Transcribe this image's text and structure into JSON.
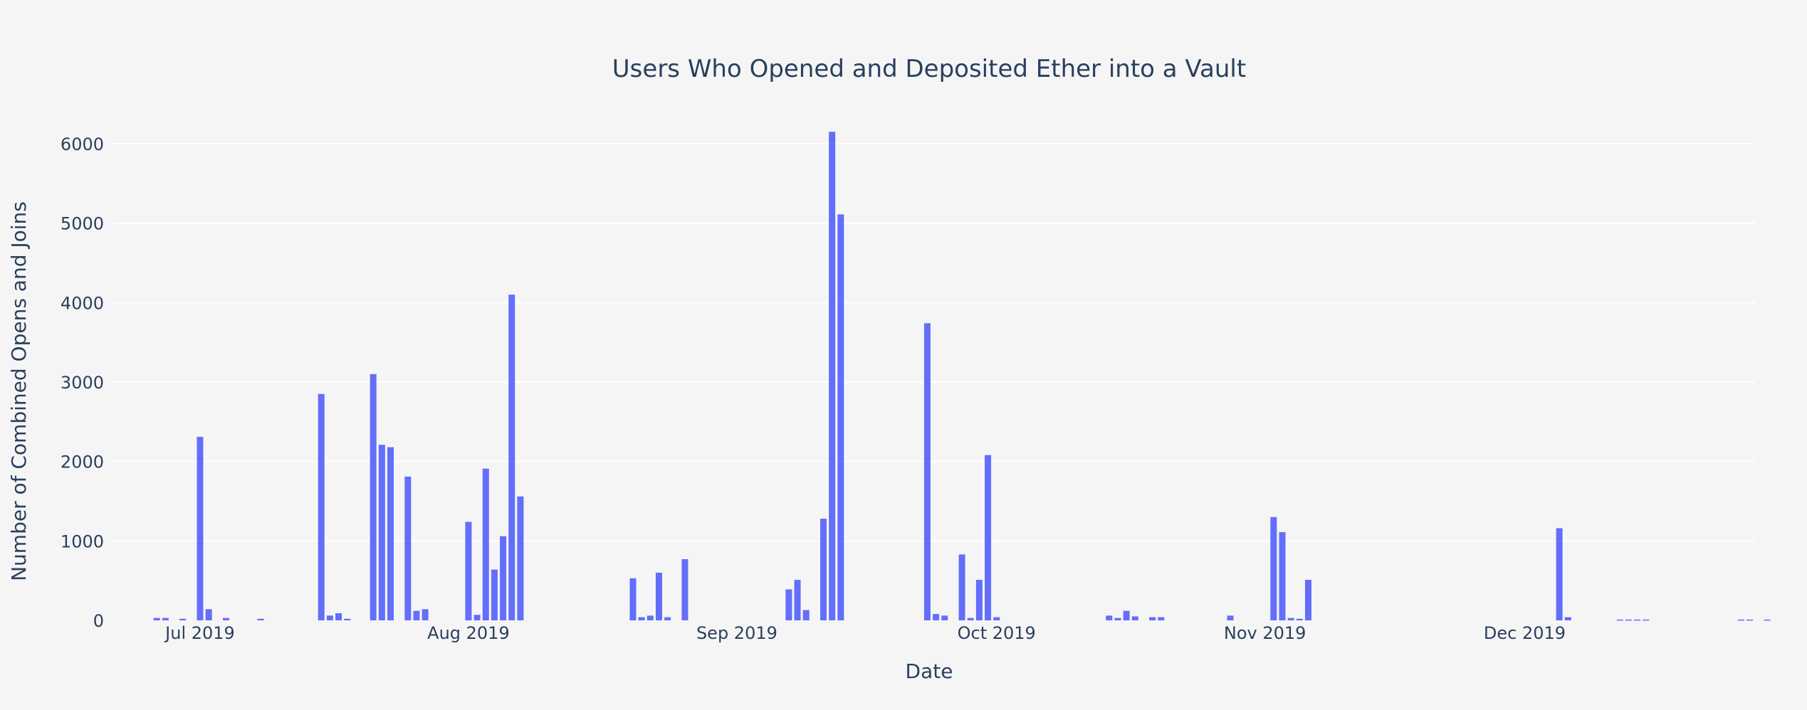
{
  "chart_data": {
    "type": "bar",
    "title": "Users Who Opened and Deposited Ether into a Vault",
    "xlabel": "Date",
    "ylabel": "Number of Combined Opens and Joins",
    "x_ticks": [
      "Jul 2019",
      "Aug 2019",
      "Sep 2019",
      "Oct 2019",
      "Nov 2019",
      "Dec 2019"
    ],
    "y_ticks": [
      "0",
      "1000",
      "2000",
      "3000",
      "4000",
      "5000",
      "6000"
    ],
    "ylim": [
      0,
      6350
    ],
    "grid": true,
    "bar_color": "#636efa",
    "x": [
      "2019-06-26",
      "2019-06-27",
      "2019-06-29",
      "2019-07-01",
      "2019-07-02",
      "2019-07-04",
      "2019-07-08",
      "2019-07-15",
      "2019-07-16",
      "2019-07-17",
      "2019-07-18",
      "2019-07-21",
      "2019-07-22",
      "2019-07-23",
      "2019-07-25",
      "2019-07-26",
      "2019-07-27",
      "2019-08-01",
      "2019-08-02",
      "2019-08-03",
      "2019-08-04",
      "2019-08-05",
      "2019-08-06",
      "2019-08-07",
      "2019-08-20",
      "2019-08-21",
      "2019-08-22",
      "2019-08-23",
      "2019-08-24",
      "2019-08-26",
      "2019-09-07",
      "2019-09-08",
      "2019-09-09",
      "2019-09-11",
      "2019-09-12",
      "2019-09-13",
      "2019-09-23",
      "2019-09-24",
      "2019-09-25",
      "2019-09-27",
      "2019-09-28",
      "2019-09-29",
      "2019-09-30",
      "2019-10-01",
      "2019-10-14",
      "2019-10-15",
      "2019-10-16",
      "2019-10-17",
      "2019-10-19",
      "2019-10-20",
      "2019-10-28",
      "2019-11-02",
      "2019-11-03",
      "2019-11-04",
      "2019-11-05",
      "2019-11-06",
      "2019-12-05",
      "2019-12-06",
      "2019-12-12",
      "2019-12-13",
      "2019-12-14",
      "2019-12-15",
      "2019-12-26",
      "2019-12-27",
      "2019-12-29"
    ],
    "values": [
      30,
      30,
      20,
      2310,
      140,
      30,
      20,
      2850,
      60,
      90,
      20,
      3100,
      2210,
      2180,
      1810,
      120,
      140,
      1240,
      70,
      1910,
      640,
      1060,
      4100,
      1560,
      530,
      40,
      60,
      600,
      40,
      770,
      390,
      510,
      130,
      1280,
      6150,
      5110,
      3740,
      80,
      60,
      830,
      30,
      510,
      2080,
      40,
      60,
      30,
      120,
      50,
      40,
      40,
      60,
      1300,
      1110,
      30,
      20,
      510,
      1160,
      40,
      10,
      10,
      10,
      10,
      10,
      10,
      10
    ]
  }
}
